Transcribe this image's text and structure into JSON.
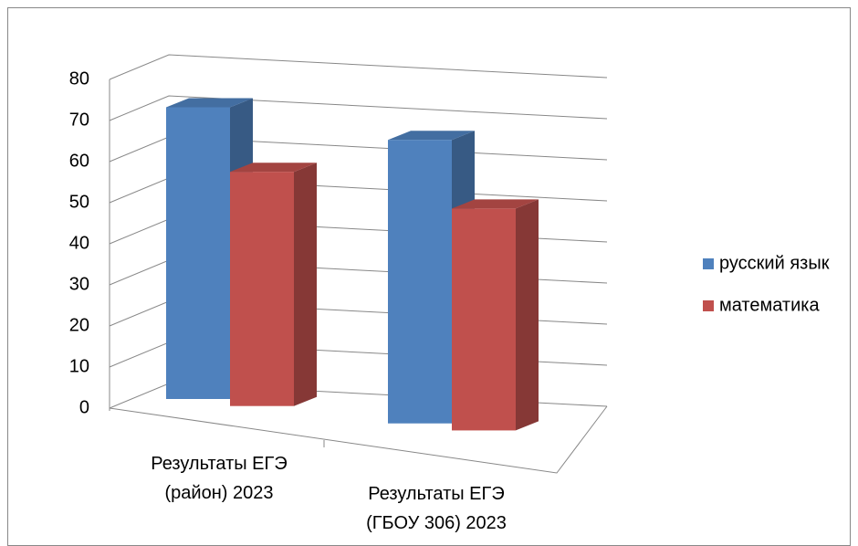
{
  "chart_data": {
    "type": "bar3d",
    "categories": [
      "Результаты ЕГЭ (район) 2023",
      "Результаты ЕГЭ (ГБОУ 306) 2023"
    ],
    "series": [
      {
        "name": "русский язык",
        "color": "#4f81bd",
        "values": [
          71,
          69
        ]
      },
      {
        "name": "математика",
        "color": "#c0504d",
        "values": [
          57,
          54
        ]
      }
    ],
    "ylim": [
      0,
      80
    ],
    "yticks": [
      0,
      10,
      20,
      30,
      40,
      50,
      60,
      70,
      80
    ],
    "grid": true,
    "legend": "right"
  }
}
